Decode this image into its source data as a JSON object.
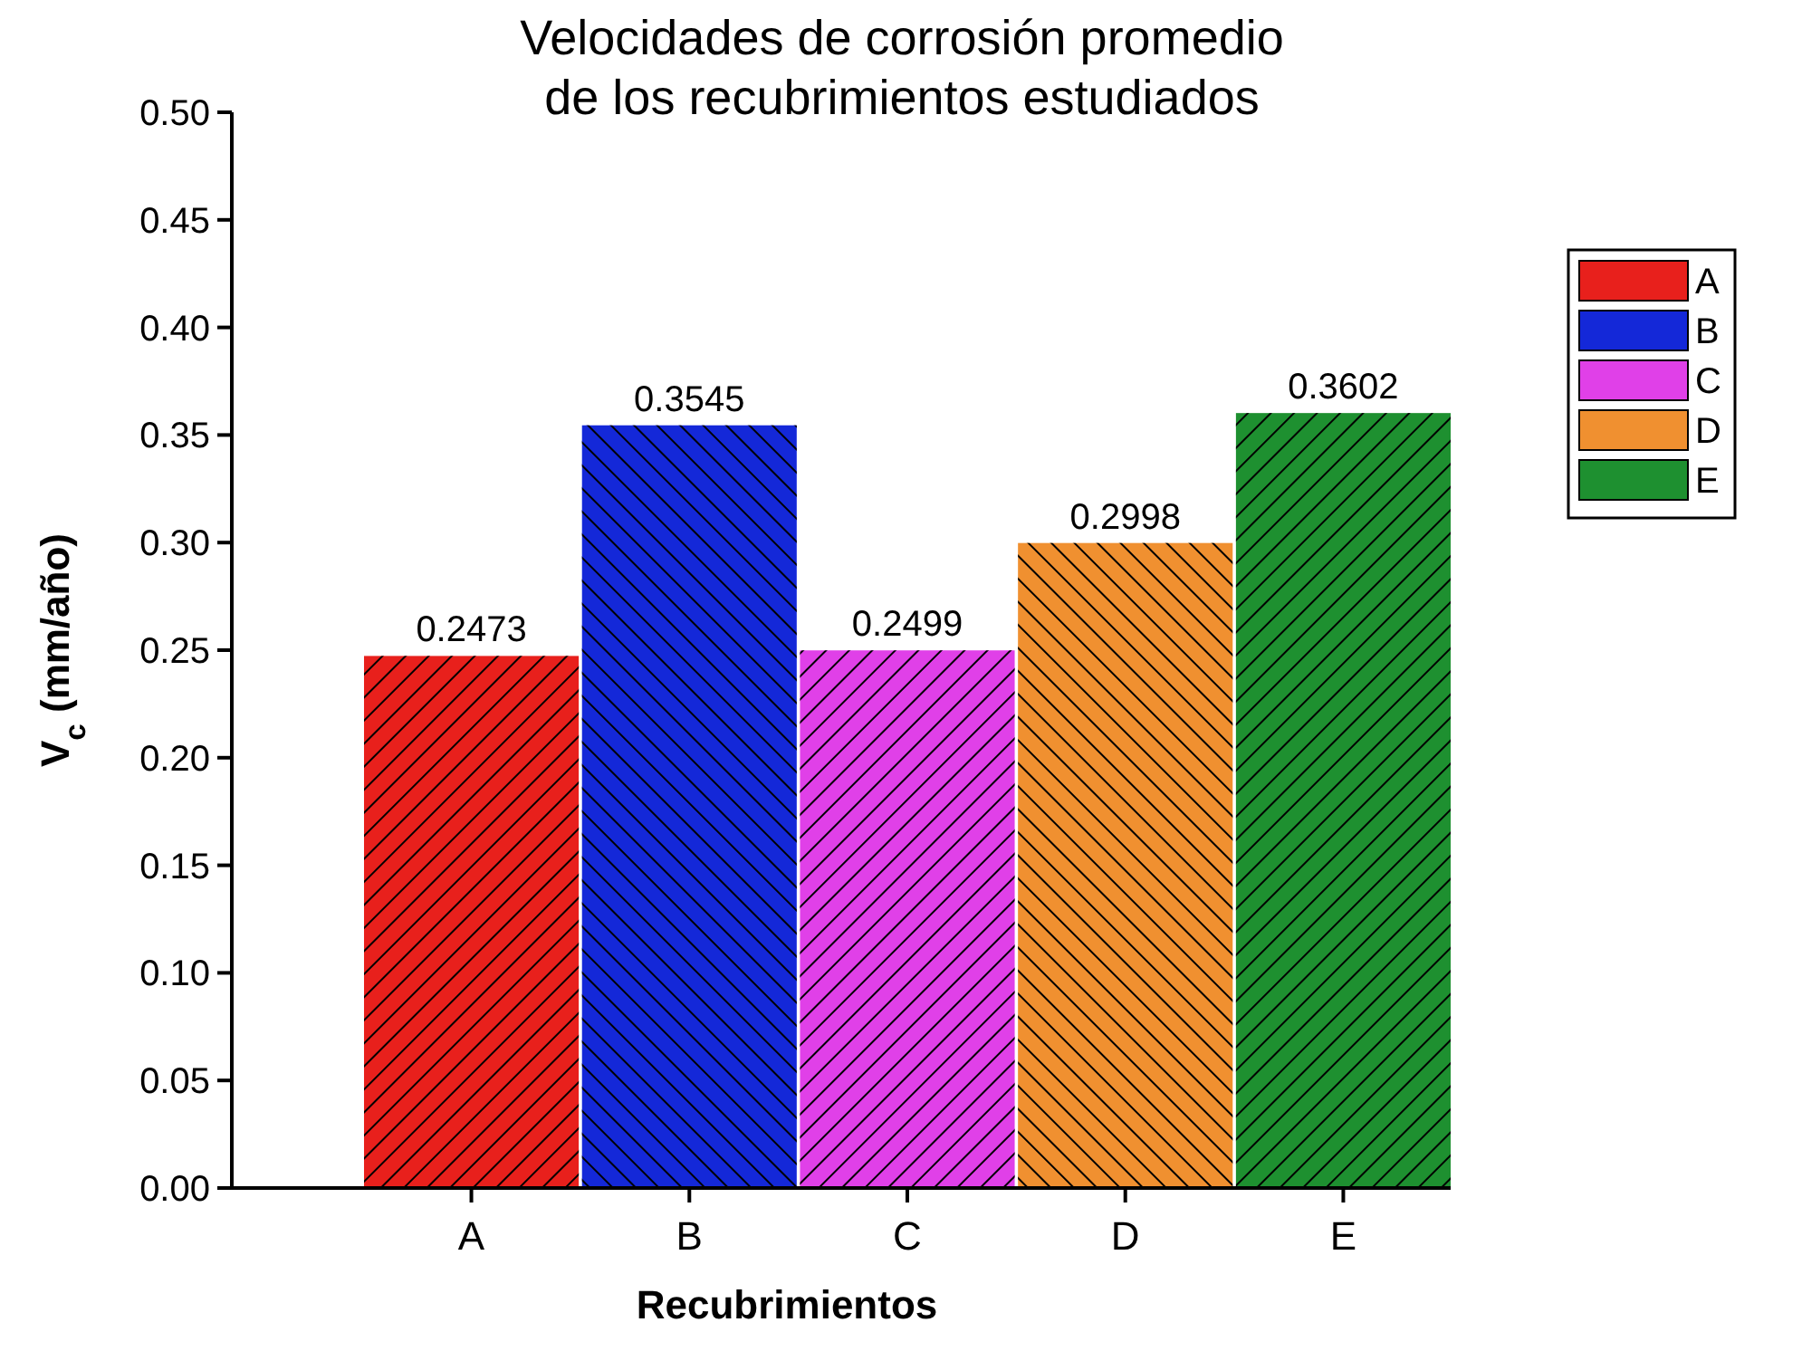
{
  "chart_data": {
    "type": "bar",
    "title": "Velocidades de corrosión promedio\nde los recubrimientos estudiados",
    "xlabel": "Recubrimientos",
    "ylabel": "V$_{c}$ (mm/año)",
    "categories": [
      "A",
      "B",
      "C",
      "D",
      "E"
    ],
    "series": [
      {
        "name": "A",
        "color": "#e8201c",
        "values": [
          0.2473,
          null,
          null,
          null,
          null
        ]
      },
      {
        "name": "B",
        "color": "#1428d8",
        "values": [
          null,
          0.3545,
          null,
          null,
          null
        ]
      },
      {
        "name": "C",
        "color": "#e040e8",
        "values": [
          null,
          null,
          0.2499,
          null,
          null
        ]
      },
      {
        "name": "D",
        "color": "#f09030",
        "values": [
          null,
          null,
          null,
          0.2998,
          null
        ]
      },
      {
        "name": "E",
        "color": "#1e9030",
        "values": [
          null,
          null,
          null,
          null,
          0.3602
        ]
      }
    ],
    "ylim": [
      0,
      0.5
    ],
    "yticks": [
      {
        "value": 0,
        "label": "0.00"
      },
      {
        "value": 0.05,
        "label": "0.05"
      },
      {
        "value": 0.1,
        "label": "0.10"
      },
      {
        "value": 0.15,
        "label": "0.15"
      },
      {
        "value": 0.2,
        "label": "0.20"
      },
      {
        "value": 0.25,
        "label": "0.25"
      },
      {
        "value": 0.3,
        "label": "0.30"
      },
      {
        "value": 0.35,
        "label": "0.35"
      },
      {
        "value": 0.4,
        "label": "0.40"
      },
      {
        "value": 0.45,
        "label": "0.45"
      },
      {
        "value": 0.5,
        "label": "0.50"
      }
    ],
    "data_labels": true,
    "grid": false,
    "legend": "top right"
  }
}
